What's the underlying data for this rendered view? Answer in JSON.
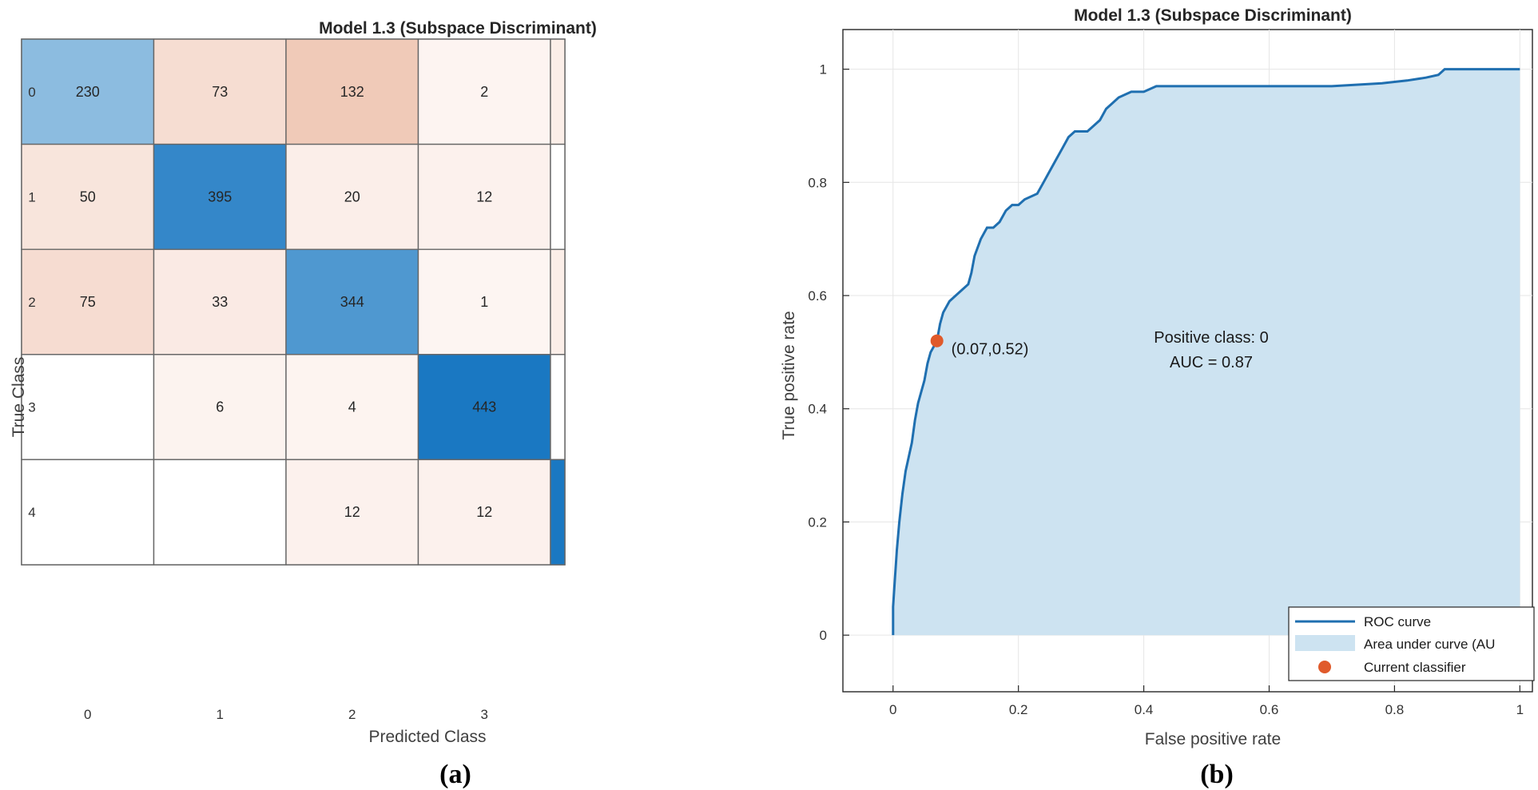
{
  "captions": {
    "a": "(a)",
    "b": "(b)"
  },
  "chart_data": [
    {
      "type": "heatmap",
      "title": "Model 1.3 (Subspace Discriminant)",
      "xlabel": "Predicted Class",
      "ylabel": "True Class",
      "x_categories": [
        "0",
        "1",
        "2",
        "3"
      ],
      "y_categories": [
        "0",
        "1",
        "2",
        "3",
        "4"
      ],
      "values": [
        [
          230,
          73,
          132,
          2
        ],
        [
          50,
          395,
          20,
          12
        ],
        [
          75,
          33,
          344,
          1
        ],
        [
          null,
          6,
          4,
          443
        ],
        [
          null,
          null,
          12,
          12
        ]
      ],
      "cropped_column_tones": [
        "low",
        "none",
        "low",
        "none",
        "high"
      ]
    },
    {
      "type": "line",
      "title": "Model 1.3 (Subspace Discriminant)",
      "xlabel": "False positive rate",
      "ylabel": "True positive rate",
      "xlim": [
        -0.08,
        1.02
      ],
      "ylim": [
        -0.1,
        1.07
      ],
      "xticks": [
        "0",
        "0.2",
        "0.4",
        "0.6",
        "0.8",
        "1"
      ],
      "yticks": [
        "0",
        "0.2",
        "0.4",
        "0.6",
        "0.8",
        "1"
      ],
      "grid": true,
      "roc_curve": [
        [
          0,
          0
        ],
        [
          0,
          0.05
        ],
        [
          0.003,
          0.1
        ],
        [
          0.006,
          0.15
        ],
        [
          0.01,
          0.2
        ],
        [
          0.015,
          0.25
        ],
        [
          0.02,
          0.29
        ],
        [
          0.03,
          0.34
        ],
        [
          0.035,
          0.38
        ],
        [
          0.04,
          0.41
        ],
        [
          0.05,
          0.45
        ],
        [
          0.055,
          0.48
        ],
        [
          0.06,
          0.5
        ],
        [
          0.07,
          0.52
        ],
        [
          0.075,
          0.55
        ],
        [
          0.08,
          0.57
        ],
        [
          0.09,
          0.59
        ],
        [
          0.1,
          0.6
        ],
        [
          0.11,
          0.61
        ],
        [
          0.12,
          0.62
        ],
        [
          0.125,
          0.64
        ],
        [
          0.13,
          0.67
        ],
        [
          0.14,
          0.7
        ],
        [
          0.15,
          0.72
        ],
        [
          0.16,
          0.72
        ],
        [
          0.17,
          0.73
        ],
        [
          0.18,
          0.75
        ],
        [
          0.19,
          0.76
        ],
        [
          0.2,
          0.76
        ],
        [
          0.21,
          0.77
        ],
        [
          0.23,
          0.78
        ],
        [
          0.24,
          0.8
        ],
        [
          0.25,
          0.82
        ],
        [
          0.26,
          0.84
        ],
        [
          0.27,
          0.86
        ],
        [
          0.28,
          0.88
        ],
        [
          0.29,
          0.89
        ],
        [
          0.31,
          0.89
        ],
        [
          0.32,
          0.9
        ],
        [
          0.33,
          0.91
        ],
        [
          0.34,
          0.93
        ],
        [
          0.35,
          0.94
        ],
        [
          0.36,
          0.95
        ],
        [
          0.38,
          0.96
        ],
        [
          0.4,
          0.96
        ],
        [
          0.42,
          0.97
        ],
        [
          0.5,
          0.97
        ],
        [
          0.6,
          0.97
        ],
        [
          0.7,
          0.97
        ],
        [
          0.78,
          0.975
        ],
        [
          0.82,
          0.98
        ],
        [
          0.85,
          0.985
        ],
        [
          0.87,
          0.99
        ],
        [
          0.88,
          1
        ],
        [
          1,
          1
        ]
      ],
      "current_classifier": {
        "x": 0.07,
        "y": 0.52,
        "label": "(0.07,0.52)"
      },
      "annotation": {
        "line1": "Positive class: 0",
        "line2": "AUC = 0.87"
      },
      "legend": {
        "position": "bottom-right",
        "entries": [
          "ROC curve",
          "Area under curve (AU",
          "Current classifier"
        ]
      },
      "colors": {
        "curve": "#1f6fb0",
        "area": "#cde3f1",
        "marker": "#e05a2b"
      }
    }
  ]
}
